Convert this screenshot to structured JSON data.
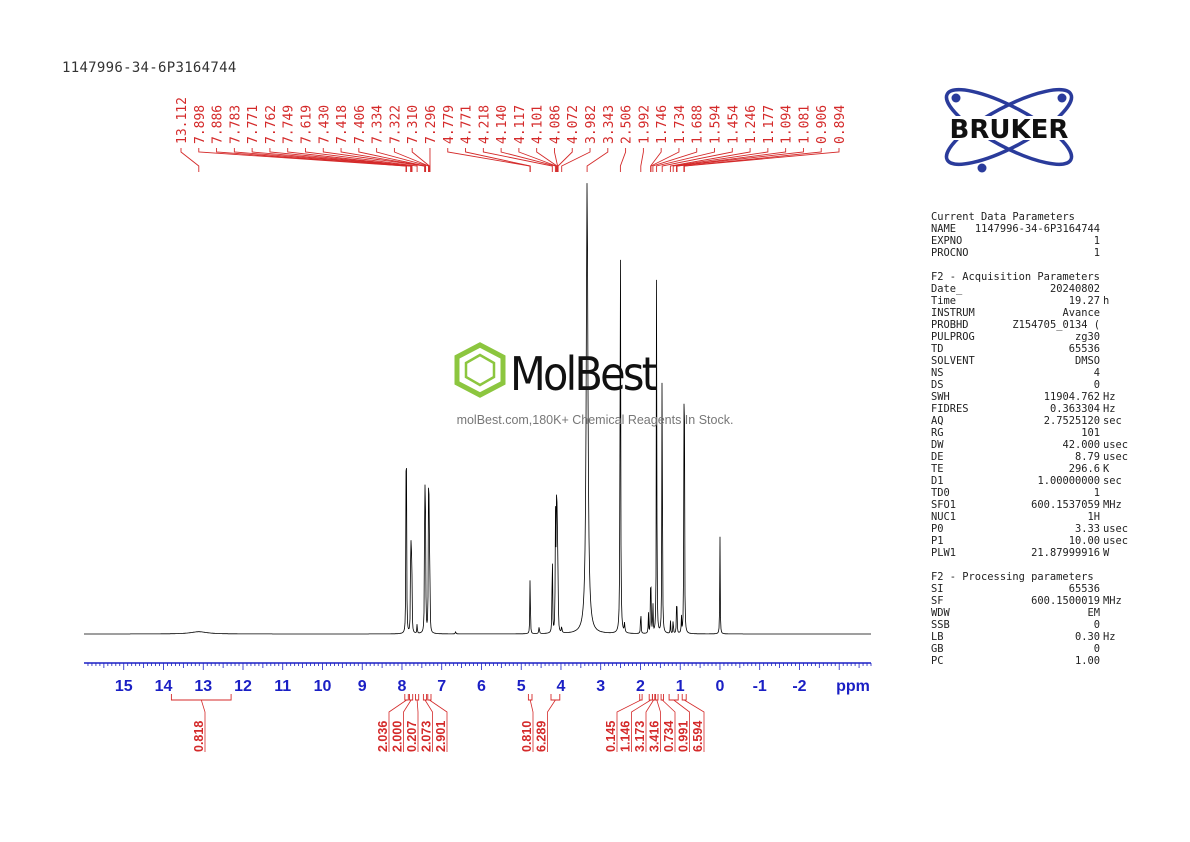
{
  "sample_id": "1147996-34-6P3164744",
  "bruker_logo": "BRUKER",
  "watermark": {
    "brand": "MolBest",
    "tagline": "molBest.com,180K+ Chemical Reagents In Stock."
  },
  "colors": {
    "peak_labels": "#d42a2a",
    "axis": "#1a1fc4",
    "integrals": "#d42a2a",
    "spectrum": "#000000",
    "logo_blue": "#2a3b9b",
    "watermark_green": "#8cc63f"
  },
  "parameters": [
    {
      "title": "Current Data Parameters",
      "rows": [
        {
          "key": "NAME",
          "value": "1147996-34-6P3164744",
          "unit": ""
        },
        {
          "key": "EXPNO",
          "value": "1",
          "unit": ""
        },
        {
          "key": "PROCNO",
          "value": "1",
          "unit": ""
        }
      ]
    },
    {
      "title": "F2 - Acquisition Parameters",
      "rows": [
        {
          "key": "Date_",
          "value": "20240802",
          "unit": ""
        },
        {
          "key": "Time",
          "value": "19.27",
          "unit": "h"
        },
        {
          "key": "INSTRUM",
          "value": "Avance",
          "unit": ""
        },
        {
          "key": "PROBHD",
          "value": "Z154705_0134 (",
          "unit": ""
        },
        {
          "key": "PULPROG",
          "value": "zg30",
          "unit": ""
        },
        {
          "key": "TD",
          "value": "65536",
          "unit": ""
        },
        {
          "key": "SOLVENT",
          "value": "DMSO",
          "unit": ""
        },
        {
          "key": "NS",
          "value": "4",
          "unit": ""
        },
        {
          "key": "DS",
          "value": "0",
          "unit": ""
        },
        {
          "key": "SWH",
          "value": "11904.762",
          "unit": "Hz"
        },
        {
          "key": "FIDRES",
          "value": "0.363304",
          "unit": "Hz"
        },
        {
          "key": "AQ",
          "value": "2.7525120",
          "unit": "sec"
        },
        {
          "key": "RG",
          "value": "101",
          "unit": ""
        },
        {
          "key": "DW",
          "value": "42.000",
          "unit": "usec"
        },
        {
          "key": "DE",
          "value": "8.79",
          "unit": "usec"
        },
        {
          "key": "TE",
          "value": "296.6",
          "unit": "K"
        },
        {
          "key": "D1",
          "value": "1.00000000",
          "unit": "sec"
        },
        {
          "key": "TD0",
          "value": "1",
          "unit": ""
        },
        {
          "key": "SFO1",
          "value": "600.1537059",
          "unit": "MHz"
        },
        {
          "key": "NUC1",
          "value": "1H",
          "unit": ""
        },
        {
          "key": "P0",
          "value": "3.33",
          "unit": "usec"
        },
        {
          "key": "P1",
          "value": "10.00",
          "unit": "usec"
        },
        {
          "key": "PLW1",
          "value": "21.87999916",
          "unit": "W"
        }
      ]
    },
    {
      "title": "F2 - Processing parameters",
      "rows": [
        {
          "key": "SI",
          "value": "65536",
          "unit": ""
        },
        {
          "key": "SF",
          "value": "600.1500019",
          "unit": "MHz"
        },
        {
          "key": "WDW",
          "value": "EM",
          "unit": ""
        },
        {
          "key": "SSB",
          "value": "0",
          "unit": ""
        },
        {
          "key": "LB",
          "value": "0.30",
          "unit": "Hz"
        },
        {
          "key": "GB",
          "value": "0",
          "unit": ""
        },
        {
          "key": "PC",
          "value": "1.00",
          "unit": ""
        }
      ]
    }
  ],
  "chart_data": {
    "type": "line",
    "xlabel": "ppm",
    "x_reversed": true,
    "xlim": [
      16.0,
      -3.8
    ],
    "x_ticks": [
      15,
      14,
      13,
      12,
      11,
      10,
      9,
      8,
      7,
      6,
      5,
      4,
      3,
      2,
      1,
      0,
      -1,
      -2
    ],
    "peak_labels": [
      "13.112",
      "7.898",
      "7.886",
      "7.783",
      "7.771",
      "7.762",
      "7.749",
      "7.619",
      "7.430",
      "7.418",
      "7.406",
      "7.334",
      "7.322",
      "7.310",
      "7.296",
      "4.779",
      "4.771",
      "4.218",
      "4.140",
      "4.117",
      "4.101",
      "4.086",
      "4.072",
      "3.982",
      "3.343",
      "2.506",
      "1.992",
      "1.746",
      "1.734",
      "1.688",
      "1.594",
      "1.454",
      "1.246",
      "1.177",
      "1.094",
      "1.081",
      "0.906",
      "0.894"
    ],
    "peaks": [
      {
        "ppm": 13.11,
        "height": 0.005,
        "width": 0.25
      },
      {
        "ppm": 7.898,
        "height": 0.31,
        "width": 0.006
      },
      {
        "ppm": 7.886,
        "height": 0.3,
        "width": 0.006
      },
      {
        "ppm": 7.783,
        "height": 0.14,
        "width": 0.006
      },
      {
        "ppm": 7.771,
        "height": 0.15,
        "width": 0.006
      },
      {
        "ppm": 7.762,
        "height": 0.12,
        "width": 0.006
      },
      {
        "ppm": 7.749,
        "height": 0.1,
        "width": 0.006
      },
      {
        "ppm": 7.619,
        "height": 0.025,
        "width": 0.006
      },
      {
        "ppm": 7.43,
        "height": 0.23,
        "width": 0.006
      },
      {
        "ppm": 7.418,
        "height": 0.28,
        "width": 0.006
      },
      {
        "ppm": 7.406,
        "height": 0.2,
        "width": 0.006
      },
      {
        "ppm": 7.334,
        "height": 0.26,
        "width": 0.006
      },
      {
        "ppm": 7.322,
        "height": 0.24,
        "width": 0.006
      },
      {
        "ppm": 7.31,
        "height": 0.15,
        "width": 0.006
      },
      {
        "ppm": 7.296,
        "height": 0.08,
        "width": 0.006
      },
      {
        "ppm": 6.65,
        "height": 0.005,
        "width": 0.01
      },
      {
        "ppm": 4.779,
        "height": 0.1,
        "width": 0.006
      },
      {
        "ppm": 4.771,
        "height": 0.05,
        "width": 0.006
      },
      {
        "ppm": 4.55,
        "height": 0.015,
        "width": 0.01
      },
      {
        "ppm": 4.218,
        "height": 0.25,
        "width": 0.006
      },
      {
        "ppm": 4.14,
        "height": 0.28,
        "width": 0.006
      },
      {
        "ppm": 4.117,
        "height": 0.37,
        "width": 0.006
      },
      {
        "ppm": 4.101,
        "height": 0.22,
        "width": 0.006
      },
      {
        "ppm": 4.086,
        "height": 0.16,
        "width": 0.006
      },
      {
        "ppm": 4.072,
        "height": 0.1,
        "width": 0.006
      },
      {
        "ppm": 3.982,
        "height": 0.015,
        "width": 0.008
      },
      {
        "ppm": 3.343,
        "height": 1.0,
        "width": 0.025
      },
      {
        "ppm": 2.506,
        "height": 1.0,
        "width": 0.008
      },
      {
        "ppm": 2.4,
        "height": 0.02,
        "width": 0.01
      },
      {
        "ppm": 1.992,
        "height": 0.07,
        "width": 0.006
      },
      {
        "ppm": 1.8,
        "height": 0.05,
        "width": 0.006
      },
      {
        "ppm": 1.746,
        "height": 0.09,
        "width": 0.006
      },
      {
        "ppm": 1.734,
        "height": 0.08,
        "width": 0.006
      },
      {
        "ppm": 1.688,
        "height": 0.08,
        "width": 0.006
      },
      {
        "ppm": 1.594,
        "height": 0.92,
        "width": 0.006
      },
      {
        "ppm": 1.454,
        "height": 0.82,
        "width": 0.006
      },
      {
        "ppm": 1.246,
        "height": 0.03,
        "width": 0.006
      },
      {
        "ppm": 1.177,
        "height": 0.04,
        "width": 0.006
      },
      {
        "ppm": 1.094,
        "height": 0.05,
        "width": 0.006
      },
      {
        "ppm": 1.081,
        "height": 0.05,
        "width": 0.006
      },
      {
        "ppm": 0.97,
        "height": 0.04,
        "width": 0.006
      },
      {
        "ppm": 0.906,
        "height": 0.42,
        "width": 0.006
      },
      {
        "ppm": 0.894,
        "height": 0.44,
        "width": 0.006
      },
      {
        "ppm": 0.0,
        "height": 0.22,
        "width": 0.006
      }
    ],
    "integrals": [
      {
        "value": "0.818",
        "from": 13.8,
        "to": 12.3
      },
      {
        "value": "2.036",
        "from": 7.93,
        "to": 7.84
      },
      {
        "value": "2.000",
        "from": 7.81,
        "to": 7.73
      },
      {
        "value": "0.207",
        "from": 7.66,
        "to": 7.58
      },
      {
        "value": "2.073",
        "from": 7.46,
        "to": 7.38
      },
      {
        "value": "2.901",
        "from": 7.35,
        "to": 7.27
      },
      {
        "value": "0.810",
        "from": 4.82,
        "to": 4.73
      },
      {
        "value": "6.289",
        "from": 4.25,
        "to": 4.03
      },
      {
        "value": "0.145",
        "from": 2.02,
        "to": 1.96
      },
      {
        "value": "1.146",
        "from": 1.78,
        "to": 1.7
      },
      {
        "value": "3.173",
        "from": 1.7,
        "to": 1.64
      },
      {
        "value": "3.416",
        "from": 1.62,
        "to": 1.56
      },
      {
        "value": "0.734",
        "from": 1.48,
        "to": 1.42
      },
      {
        "value": "0.991",
        "from": 1.28,
        "to": 1.05
      },
      {
        "value": "6.594",
        "from": 0.95,
        "to": 0.85
      }
    ]
  }
}
